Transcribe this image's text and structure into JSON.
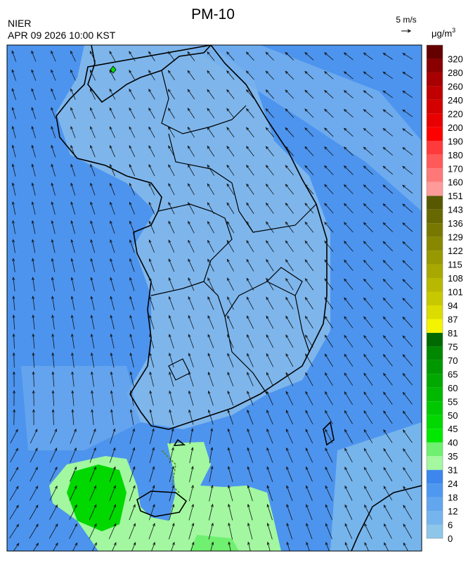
{
  "header": {
    "title": "PM-10",
    "agency": "NIER",
    "datetime": "APR 09 2026 10:00 KST"
  },
  "wind_reference": {
    "label": "5 m/s"
  },
  "colorbar": {
    "unit": "μg/m",
    "unit_exponent": "3",
    "ticks": [
      0,
      6,
      12,
      18,
      24,
      31,
      35,
      40,
      45,
      50,
      55,
      60,
      65,
      70,
      75,
      81,
      87,
      94,
      101,
      108,
      115,
      122,
      129,
      136,
      143,
      151,
      160,
      170,
      180,
      190,
      200,
      220,
      240,
      260,
      280,
      320
    ],
    "colors": [
      "#8ec6ea",
      "#76b4ee",
      "#62a6f0",
      "#4f98f0",
      "#3c86ee",
      "#a4f8a0",
      "#70f070",
      "#00e800",
      "#00d800",
      "#00c800",
      "#00b800",
      "#00a800",
      "#009800",
      "#008800",
      "#006a00",
      "#f4f400",
      "#dcdc00",
      "#c8c800",
      "#b8b800",
      "#a8a800",
      "#989800",
      "#888800",
      "#787800",
      "#686800",
      "#585800",
      "#ff9a9a",
      "#ff7878",
      "#ff5a5a",
      "#ff3a3a",
      "#ff0000",
      "#e80000",
      "#d40000",
      "#c00000",
      "#a80000",
      "#8a0000",
      "#640000"
    ]
  }
}
